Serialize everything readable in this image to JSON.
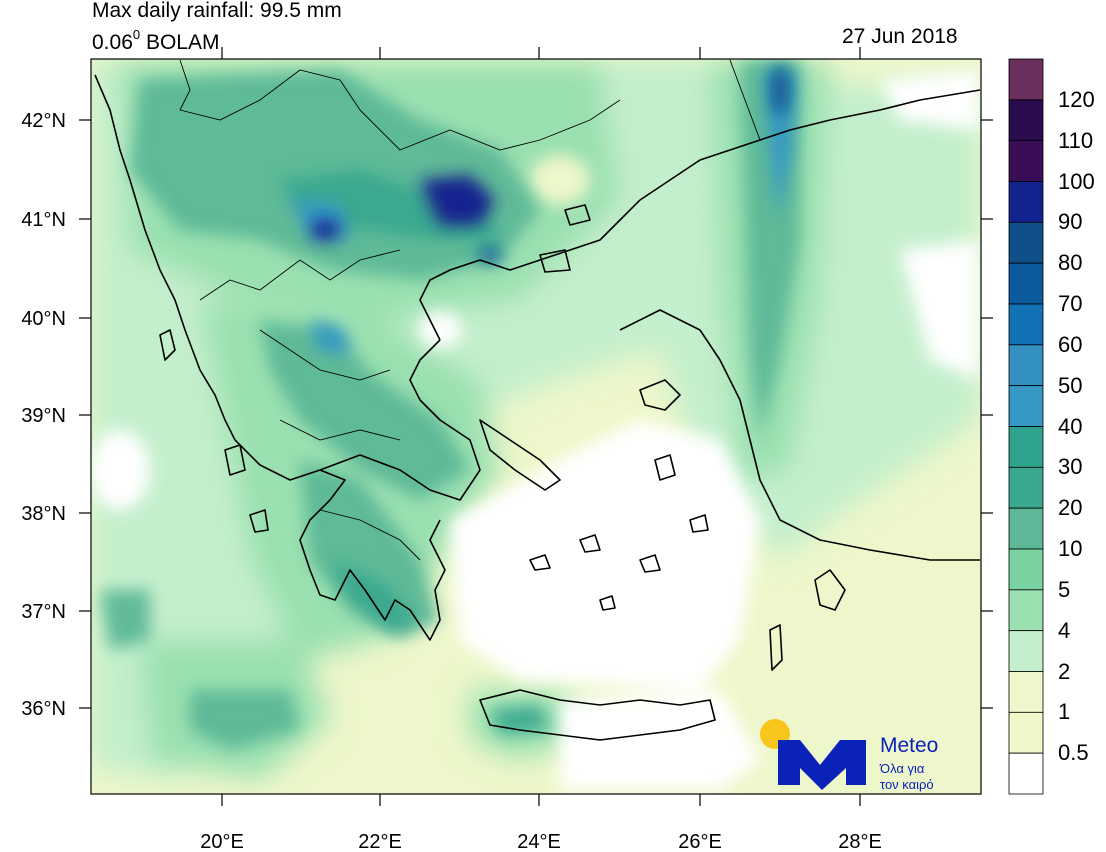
{
  "header": {
    "title": "Max daily rainfall: 99.5 mm",
    "resolution_value": "0.06",
    "resolution_degree": "0",
    "model": "BOLAM",
    "date": "27 Jun 2018"
  },
  "axes": {
    "lat_ticks": [
      "42°N",
      "41°N",
      "40°N",
      "39°N",
      "38°N",
      "37°N",
      "36°N"
    ],
    "lon_ticks": [
      "20°E",
      "22°E",
      "24°E",
      "26°E",
      "28°E"
    ]
  },
  "legend": {
    "labels": [
      "120",
      "110",
      "100",
      "90",
      "80",
      "70",
      "60",
      "50",
      "40",
      "30",
      "20",
      "10",
      "5",
      "4",
      "2",
      "1",
      "0.5"
    ],
    "colors": [
      "#6b2f5e",
      "#2a0b4d",
      "#3a0e57",
      "#12238f",
      "#0f4f8a",
      "#0a5a9c",
      "#1172b6",
      "#3390c0",
      "#3698c4",
      "#2ea38e",
      "#3aa890",
      "#5cb896",
      "#79d2a0",
      "#9ae0b0",
      "#c4efcc",
      "#eef7cb",
      "#f0f7c8",
      "#ffffff"
    ]
  },
  "logo": {
    "brand": "Meteo",
    "tagline_line1": "Όλα για",
    "tagline_line2": "τον καιρό",
    "colors": {
      "sun": "#f7c51c",
      "mark": "#0b22b8"
    }
  }
}
